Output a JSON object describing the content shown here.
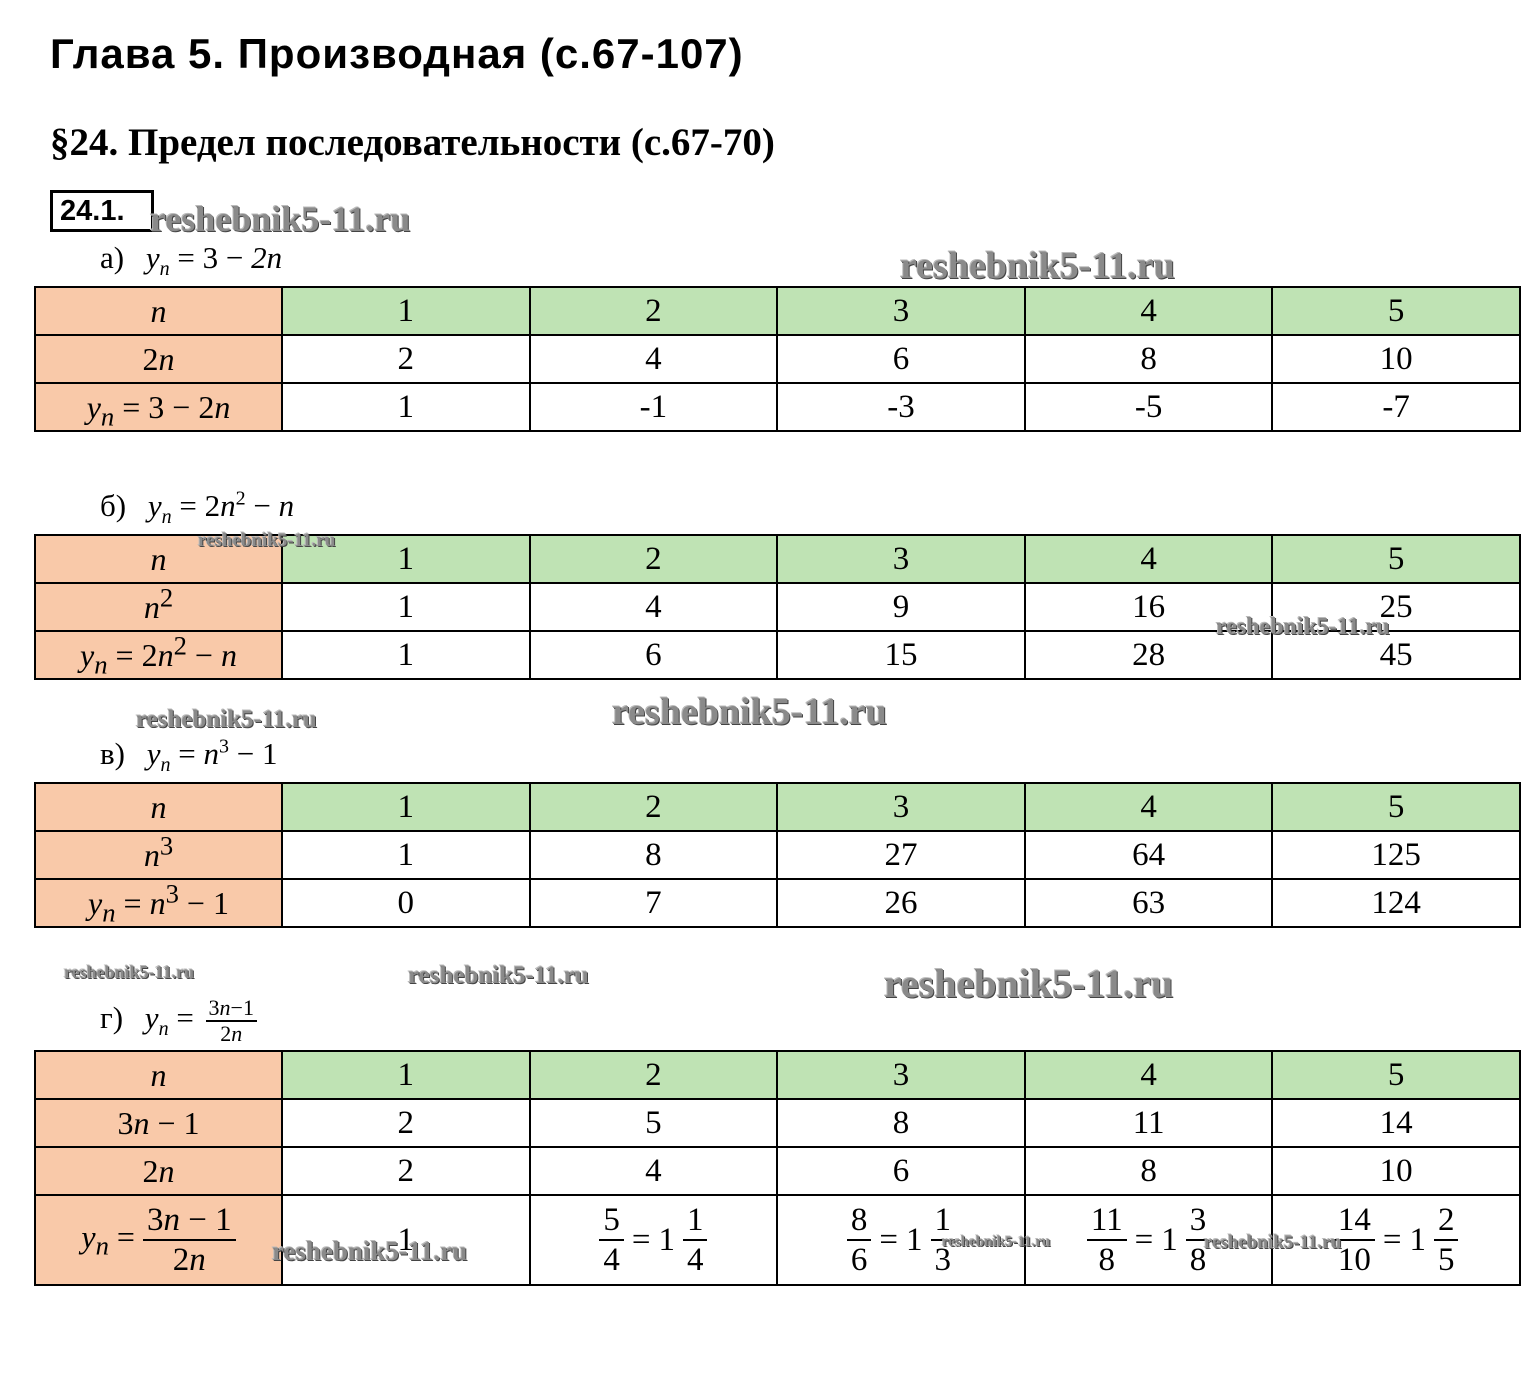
{
  "chapter_title": "Глава 5. Производная (с.67-107)",
  "section_title": "§24. Предел последовательности (с.67-70)",
  "task_number": "24.1.",
  "watermark": "reshebnik5-11.ru",
  "parts": {
    "a": {
      "letter": "а)",
      "rows": [
        {
          "label": "n",
          "values": [
            "1",
            "2",
            "3",
            "4",
            "5"
          ]
        },
        {
          "label": "2n",
          "values": [
            "2",
            "4",
            "6",
            "8",
            "10"
          ]
        },
        {
          "label": "y_n = 3 − 2n",
          "values": [
            "1",
            "-1",
            "-3",
            "-5",
            "-7"
          ]
        }
      ]
    },
    "b": {
      "letter": "б)",
      "rows": [
        {
          "label": "n",
          "values": [
            "1",
            "2",
            "3",
            "4",
            "5"
          ]
        },
        {
          "label": "n^2",
          "values": [
            "1",
            "4",
            "9",
            "16",
            "25"
          ]
        },
        {
          "label": "y_n = 2n^2 − n",
          "values": [
            "1",
            "6",
            "15",
            "28",
            "45"
          ]
        }
      ]
    },
    "c": {
      "letter": "в)",
      "rows": [
        {
          "label": "n",
          "values": [
            "1",
            "2",
            "3",
            "4",
            "5"
          ]
        },
        {
          "label": "n^3",
          "values": [
            "1",
            "8",
            "27",
            "64",
            "125"
          ]
        },
        {
          "label": "y_n = n^3 − 1",
          "values": [
            "0",
            "7",
            "26",
            "63",
            "124"
          ]
        }
      ]
    },
    "d": {
      "letter": "г)",
      "rows": [
        {
          "label": "n",
          "values": [
            "1",
            "2",
            "3",
            "4",
            "5"
          ]
        },
        {
          "label": "3n − 1",
          "values": [
            "2",
            "5",
            "8",
            "11",
            "14"
          ]
        },
        {
          "label": "2n",
          "values": [
            "2",
            "4",
            "6",
            "8",
            "10"
          ]
        }
      ],
      "result_row": {
        "label": "y_n = (3n − 1)/(2n)",
        "cells": [
          {
            "value": "1"
          },
          {
            "num": "5",
            "den": "4",
            "whole": "1",
            "fnum": "1",
            "fden": "4"
          },
          {
            "num": "8",
            "den": "6",
            "whole": "1",
            "fnum": "1",
            "fden": "3"
          },
          {
            "num": "11",
            "den": "8",
            "whole": "1",
            "fnum": "3",
            "fden": "8"
          },
          {
            "num": "14",
            "den": "10",
            "whole": "1",
            "fnum": "2",
            "fden": "5"
          }
        ]
      }
    }
  }
}
